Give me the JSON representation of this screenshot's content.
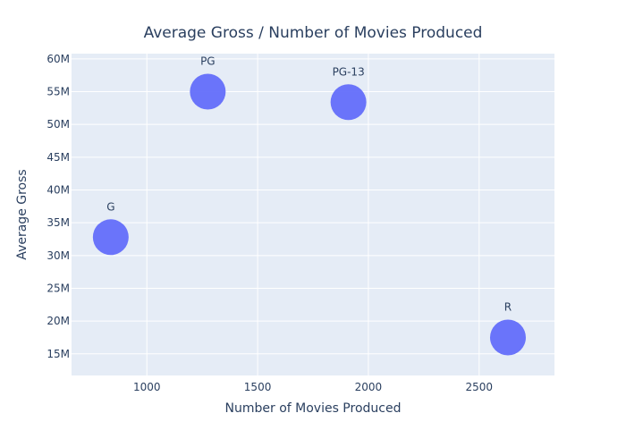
{
  "chart_data": {
    "type": "scatter",
    "title": "Average Gross / Number of Movies Produced",
    "xlabel": "Number of Movies Produced",
    "ylabel": "Average Gross",
    "xlim": [
      660,
      2840
    ],
    "ylim": [
      11700000,
      60800000
    ],
    "xticks": [
      1000,
      1500,
      2000,
      2500
    ],
    "xtick_labels": [
      "1000",
      "1500",
      "2000",
      "2500"
    ],
    "yticks": [
      15000000,
      20000000,
      25000000,
      30000000,
      35000000,
      40000000,
      45000000,
      50000000,
      55000000,
      60000000
    ],
    "ytick_labels": [
      "15M",
      "20M",
      "25M",
      "30M",
      "35M",
      "40M",
      "45M",
      "50M",
      "55M",
      "60M"
    ],
    "grid": true,
    "marker_color": "#636efa",
    "plot_background": "#e5ecf6",
    "points": [
      {
        "label": "G",
        "x": 837,
        "y": 32800000
      },
      {
        "label": "PG",
        "x": 1275,
        "y": 55000000
      },
      {
        "label": "PG-13",
        "x": 1910,
        "y": 53400000
      },
      {
        "label": "R",
        "x": 2630,
        "y": 17500000
      }
    ]
  }
}
